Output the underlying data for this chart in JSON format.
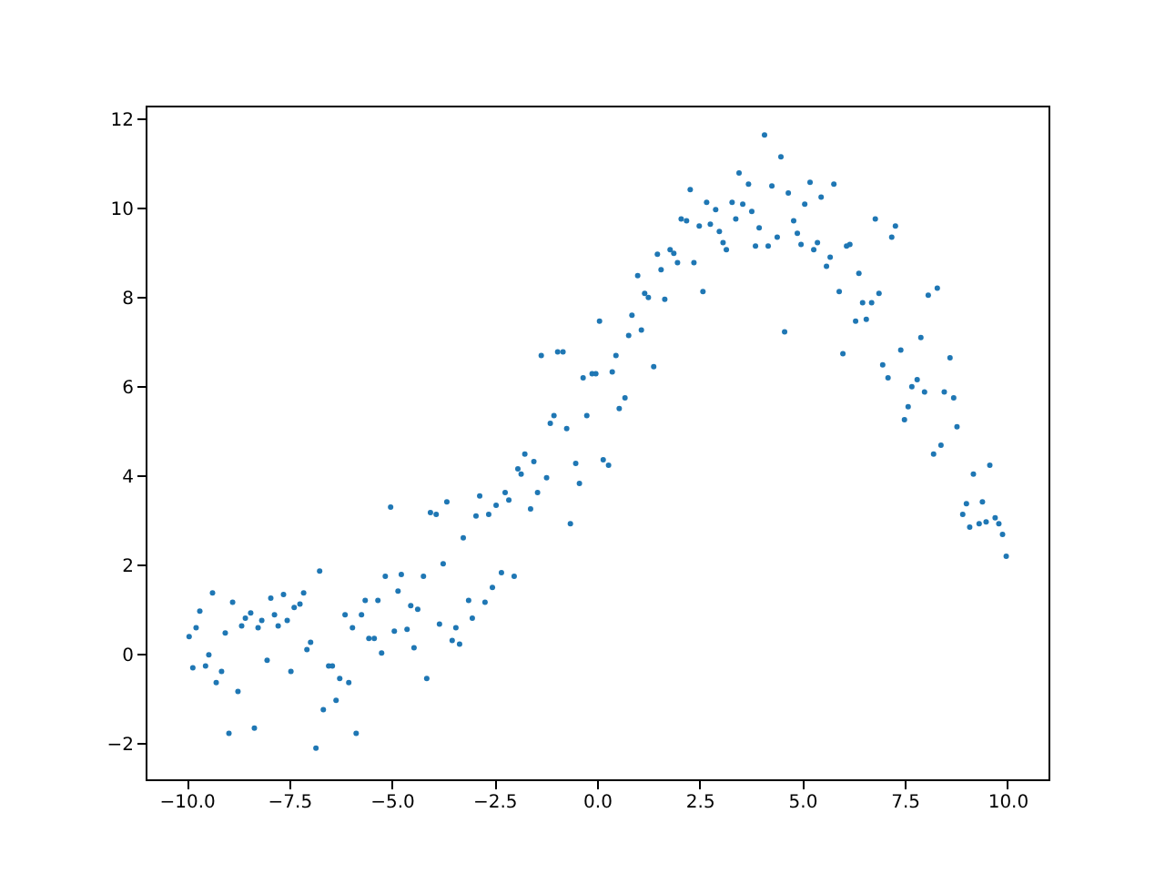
{
  "chart_data": {
    "type": "scatter",
    "marker": "circle",
    "grid": false,
    "xlim": [
      -11,
      11
    ],
    "ylim": [
      -2.8,
      12.3
    ],
    "xticks": [
      {
        "value": -10,
        "label": "−10.0"
      },
      {
        "value": -7.5,
        "label": "−7.5"
      },
      {
        "value": -5,
        "label": "−5.0"
      },
      {
        "value": -2.5,
        "label": "−2.5"
      },
      {
        "value": 0,
        "label": "0.0"
      },
      {
        "value": 2.5,
        "label": "2.5"
      },
      {
        "value": 5,
        "label": "5.0"
      },
      {
        "value": 7.5,
        "label": "7.5"
      },
      {
        "value": 10,
        "label": "10.0"
      }
    ],
    "yticks": [
      -2,
      0,
      2,
      4,
      6,
      8,
      10,
      12
    ],
    "series": [
      {
        "color": "#1f77b4",
        "x": [
          -9.94,
          -9.85,
          -9.77,
          -9.68,
          -9.54,
          -9.46,
          -9.37,
          -9.28,
          -9.15,
          -9.06,
          -8.97,
          -8.88,
          -8.75,
          -8.66,
          -8.57,
          -8.44,
          -8.35,
          -8.26,
          -8.17,
          -8.04,
          -7.95,
          -7.86,
          -7.77,
          -7.64,
          -7.55,
          -7.46,
          -7.38,
          -7.24,
          -7.15,
          -7.07,
          -6.98,
          -6.85,
          -6.76,
          -6.67,
          -6.54,
          -6.45,
          -6.36,
          -6.27,
          -6.14,
          -6.05,
          -5.96,
          -5.87,
          -5.74,
          -5.65,
          -5.56,
          -5.43,
          -5.34,
          -5.25,
          -5.16,
          -5.03,
          -4.94,
          -4.85,
          -4.77,
          -4.63,
          -4.54,
          -4.46,
          -4.37,
          -4.23,
          -4.15,
          -4.06,
          -3.92,
          -3.84,
          -3.75,
          -3.66,
          -3.53,
          -3.44,
          -3.35,
          -3.26,
          -3.13,
          -3.04,
          -2.95,
          -2.86,
          -2.73,
          -2.64,
          -2.55,
          -2.46,
          -2.33,
          -2.24,
          -2.15,
          -2.02,
          -1.93,
          -1.85,
          -1.76,
          -1.62,
          -1.54,
          -1.45,
          -1.36,
          -1.23,
          -1.14,
          -1.05,
          -0.96,
          -0.83,
          -0.74,
          -0.65,
          -0.52,
          -0.43,
          -0.34,
          -0.25,
          -0.12,
          -0.03,
          0.06,
          0.15,
          0.28,
          0.37,
          0.46,
          0.54,
          0.68,
          0.77,
          0.85,
          0.99,
          1.08,
          1.16,
          1.25,
          1.38,
          1.47,
          1.56,
          1.65,
          1.78,
          1.87,
          1.96,
          2.05,
          2.18,
          2.27,
          2.36,
          2.49,
          2.58,
          2.67,
          2.76,
          2.89,
          2.98,
          3.07,
          3.15,
          3.29,
          3.38,
          3.46,
          3.55,
          3.69,
          3.77,
          3.86,
          3.95,
          4.08,
          4.17,
          4.26,
          4.39,
          4.48,
          4.57,
          4.66,
          4.79,
          4.88,
          4.97,
          5.06,
          5.19,
          5.28,
          5.37,
          5.46,
          5.59,
          5.68,
          5.77,
          5.9,
          5.99,
          6.08,
          6.16,
          6.3,
          6.38,
          6.47,
          6.56,
          6.69,
          6.78,
          6.87,
          6.96,
          7.09,
          7.18,
          7.27,
          7.4,
          7.49,
          7.58,
          7.67,
          7.8,
          7.89,
          7.98,
          8.07,
          8.2,
          8.29,
          8.38,
          8.46,
          8.6,
          8.69,
          8.77,
          8.91,
          9.0,
          9.08,
          9.17,
          9.31,
          9.39,
          9.48,
          9.57,
          9.7,
          9.79,
          9.88,
          9.97
        ],
        "values": [
          0.4,
          -0.3,
          0.6,
          0.97,
          -0.26,
          -0.01,
          1.38,
          -0.63,
          -0.38,
          0.48,
          -1.77,
          1.17,
          -0.83,
          0.64,
          0.81,
          0.93,
          -1.65,
          0.6,
          0.76,
          -0.13,
          1.26,
          0.89,
          0.64,
          1.34,
          0.76,
          -0.38,
          1.05,
          1.13,
          1.38,
          0.11,
          0.27,
          -2.1,
          1.87,
          -1.24,
          -0.26,
          -0.26,
          -1.03,
          -0.54,
          0.89,
          -0.63,
          0.6,
          -1.77,
          0.89,
          1.21,
          0.36,
          0.36,
          1.21,
          0.03,
          1.75,
          3.3,
          0.52,
          1.42,
          1.79,
          0.56,
          1.09,
          0.15,
          1.01,
          1.75,
          -0.54,
          3.18,
          3.14,
          0.68,
          2.03,
          3.42,
          0.31,
          0.6,
          0.23,
          2.61,
          1.21,
          0.81,
          3.1,
          3.55,
          1.17,
          3.14,
          1.5,
          3.34,
          1.83,
          3.63,
          3.46,
          1.75,
          4.16,
          4.04,
          4.49,
          3.26,
          4.32,
          3.63,
          6.7,
          3.96,
          5.18,
          5.35,
          6.78,
          6.78,
          5.06,
          2.93,
          4.28,
          3.83,
          6.2,
          5.35,
          6.29,
          6.29,
          7.47,
          4.36,
          4.24,
          6.33,
          6.7,
          5.51,
          5.75,
          7.15,
          7.6,
          8.49,
          7.27,
          8.09,
          8.0,
          6.45,
          8.97,
          8.62,
          7.96,
          9.07,
          8.99,
          8.78,
          9.76,
          9.72,
          10.42,
          8.78,
          9.6,
          8.13,
          10.13,
          9.64,
          9.97,
          9.48,
          9.23,
          9.07,
          10.13,
          9.76,
          10.79,
          10.09,
          10.54,
          9.93,
          9.15,
          9.56,
          11.64,
          9.15,
          10.5,
          9.35,
          11.15,
          7.23,
          10.34,
          9.72,
          9.44,
          9.19,
          10.09,
          10.58,
          9.07,
          9.23,
          10.25,
          8.7,
          8.9,
          10.54,
          8.13,
          6.74,
          9.15,
          9.19,
          7.47,
          8.54,
          7.88,
          7.51,
          7.88,
          9.76,
          8.09,
          6.49,
          6.2,
          9.35,
          9.6,
          6.82,
          5.26,
          5.55,
          6.0,
          6.16,
          7.1,
          5.88,
          8.05,
          4.49,
          8.21,
          4.69,
          5.88,
          6.65,
          5.75,
          5.1,
          3.14,
          3.38,
          2.85,
          4.04,
          2.93,
          3.42,
          2.97,
          4.24,
          3.06,
          2.93,
          2.69,
          2.2
        ]
      }
    ]
  }
}
